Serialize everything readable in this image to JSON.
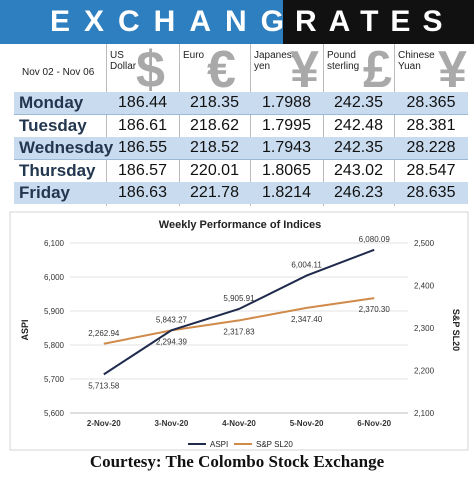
{
  "banner": {
    "left": "EXCHANGE",
    "right": "RATES"
  },
  "table": {
    "date_range": "Nov 02 - Nov 06",
    "currencies": [
      {
        "name_line1": "US",
        "name_line2": "Dollar",
        "symbol": "$"
      },
      {
        "name_line1": "Euro",
        "name_line2": "",
        "symbol": "€"
      },
      {
        "name_line1": "Japanese",
        "name_line2": "yen",
        "symbol": "¥"
      },
      {
        "name_line1": "Pound",
        "name_line2": "sterling",
        "symbol": "£"
      },
      {
        "name_line1": "Chinese",
        "name_line2": "Yuan",
        "symbol": "¥"
      }
    ],
    "rows": [
      {
        "day": "Monday",
        "values": [
          "186.44",
          "218.35",
          "1.7988",
          "242.35",
          "28.365"
        ]
      },
      {
        "day": "Tuesday",
        "values": [
          "186.61",
          "218.62",
          "1.7995",
          "242.48",
          "28.381"
        ]
      },
      {
        "day": "Wednesday",
        "values": [
          "186.55",
          "218.52",
          "1.7943",
          "242.35",
          "28.228"
        ]
      },
      {
        "day": "Thursday",
        "values": [
          "186.57",
          "220.01",
          "1.8065",
          "243.02",
          "28.547"
        ]
      },
      {
        "day": "Friday",
        "values": [
          "186.63",
          "221.78",
          "1.8214",
          "246.23",
          "28.635"
        ]
      }
    ]
  },
  "colors": {
    "banner_blue": "#2e7fc0",
    "aspi": "#1f2a4d",
    "sp": "#d08a4a",
    "row_shade": "#c9dcef"
  },
  "chart_data": {
    "type": "line",
    "title": "Weekly Performance of Indices",
    "categories": [
      "2-Nov-20",
      "3-Nov-20",
      "4-Nov-20",
      "5-Nov-20",
      "6-Nov-20"
    ],
    "series": [
      {
        "name": "ASPI",
        "axis": "left",
        "values": [
          5713.58,
          5843.27,
          5905.91,
          6004.11,
          6080.09
        ],
        "labels": [
          "5,713.58",
          "5,843.27",
          "5,905.91",
          "6,004.11",
          "6,080.09"
        ]
      },
      {
        "name": "S&P SL20",
        "axis": "right",
        "values": [
          2262.94,
          2294.39,
          2317.83,
          2347.4,
          2370.3
        ],
        "labels": [
          "2,262.94",
          "2,294.39",
          "2,317.83",
          "2,347.40",
          "2,370.30"
        ]
      }
    ],
    "ylabel_left": "ASPI",
    "ylabel_right": "S&P SL20",
    "ylim_left": [
      5600,
      6100
    ],
    "yticks_left": [
      "5,600",
      "5,700",
      "5,800",
      "5,900",
      "6,000",
      "6,100"
    ],
    "ylim_right": [
      2100,
      2500
    ],
    "yticks_right": [
      "2,100",
      "2,200",
      "2,300",
      "2,400",
      "2,500"
    ],
    "legend": "bottom"
  },
  "footer": {
    "courtesy": "Courtesy: The Colombo Stock Exchange"
  }
}
